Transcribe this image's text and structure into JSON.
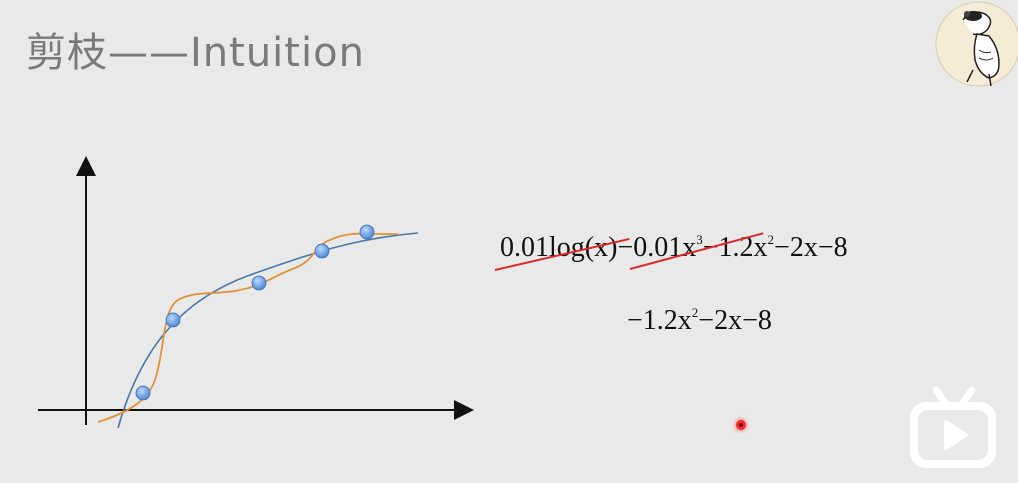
{
  "slide": {
    "title": "剪枝——Intuition"
  },
  "equations": {
    "full": {
      "term1": "0.01log(x)",
      "op1": "−",
      "term2": "0.01x",
      "term2_exp": "3",
      "rest": "−1.2x",
      "rest_exp": "2",
      "tail": "−2x−8"
    },
    "pruned": {
      "lead": "−1.2x",
      "lead_exp": "2",
      "tail": "−2x−8"
    }
  },
  "colors": {
    "strike": "#d9292a",
    "fit_blue": "#4a78a8",
    "fit_orange": "#e0923a",
    "point": "#6fa5e6"
  },
  "icons": {
    "avatar": "snoopy-avatar",
    "watermark": "bilibili-tv-icon"
  }
}
